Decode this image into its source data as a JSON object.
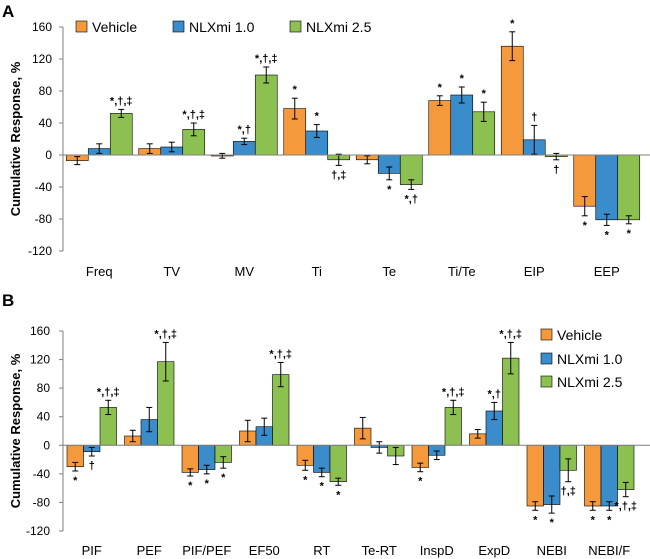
{
  "colors": {
    "Vehicle": "#f59a3c",
    "NLXmi 1.0": "#3a8ccb",
    "NLXmi 2.5": "#8cc152"
  },
  "chart_data": [
    {
      "type": "bar",
      "panel": "A",
      "ylabel": "Cumulative Response, %",
      "ylim": [
        -120,
        160
      ],
      "yticks": [
        -120,
        -80,
        -40,
        0,
        40,
        80,
        120,
        160
      ],
      "legend_position": "top",
      "categories": [
        "Freq",
        "TV",
        "MV",
        "Ti",
        "Te",
        "Ti/Te",
        "EIP",
        "EEP"
      ],
      "series": [
        {
          "name": "Vehicle",
          "values": [
            -7,
            8,
            -1,
            58,
            -6,
            68,
            136,
            -64
          ],
          "errors": [
            5,
            6,
            3,
            13,
            5,
            6,
            18,
            12
          ],
          "annotations": [
            "",
            "",
            "",
            "*",
            "",
            "*",
            "*",
            "*"
          ]
        },
        {
          "name": "NLXmi 1.0",
          "values": [
            8,
            10,
            17,
            30,
            -23,
            75,
            19,
            -81
          ],
          "errors": [
            6,
            6,
            4,
            8,
            8,
            10,
            18,
            7
          ],
          "annotations": [
            "",
            "",
            "*,†",
            "*",
            "*",
            "*",
            "†",
            "*"
          ]
        },
        {
          "name": "NLXmi 2.5",
          "values": [
            52,
            32,
            100,
            -6,
            -37,
            54,
            -2,
            -81
          ],
          "errors": [
            5,
            8,
            10,
            7,
            6,
            12,
            4,
            5
          ],
          "annotations": [
            "*,†,‡",
            "*,†,‡",
            "*,†,‡",
            "†,‡",
            "*,†",
            "*",
            "†",
            "*"
          ]
        }
      ]
    },
    {
      "type": "bar",
      "panel": "B",
      "ylabel": "Cumulative Response, %",
      "ylim": [
        -120,
        160
      ],
      "yticks": [
        -120,
        -80,
        -40,
        0,
        40,
        80,
        120,
        160
      ],
      "legend_position": "top-right",
      "categories": [
        "PIF",
        "PEF",
        "PIF/PEF",
        "EF50",
        "RT",
        "Te-RT",
        "InspD",
        "ExpD",
        "NEBI",
        "NEBI/F"
      ],
      "series": [
        {
          "name": "Vehicle",
          "values": [
            -30,
            13,
            -38,
            20,
            -28,
            24,
            -31,
            16,
            -85,
            -85
          ],
          "errors": [
            6,
            8,
            5,
            15,
            7,
            15,
            6,
            6,
            6,
            6
          ],
          "annotations": [
            "*",
            "",
            "*",
            "",
            "*",
            "",
            "*",
            "",
            "*",
            "*"
          ]
        },
        {
          "name": "NLXmi 1.0",
          "values": [
            -9,
            36,
            -34,
            26,
            -38,
            -3,
            -14,
            48,
            -83,
            -85
          ],
          "errors": [
            6,
            17,
            6,
            12,
            6,
            8,
            6,
            12,
            12,
            6
          ],
          "annotations": [
            "†",
            "",
            "*",
            "",
            "*",
            "",
            "",
            "*,†",
            "*",
            "*"
          ]
        },
        {
          "name": "NLXmi 2.5",
          "values": [
            53,
            117,
            -24,
            99,
            -51,
            -15,
            53,
            122,
            -35,
            -62
          ],
          "errors": [
            10,
            27,
            8,
            17,
            5,
            12,
            10,
            22,
            16,
            10
          ],
          "annotations": [
            "*,†,‡",
            "*,†,‡",
            "*",
            "*,†,‡",
            "*",
            "",
            "*,†,‡",
            "*,†,‡",
            "†,‡",
            "*,†,‡"
          ]
        }
      ]
    }
  ]
}
